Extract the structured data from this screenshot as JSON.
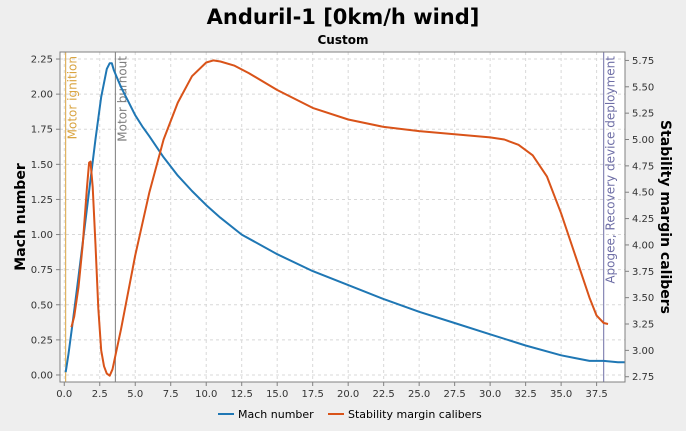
{
  "chart_data": {
    "type": "line",
    "title": "Anduril-1 [0km/h wind]",
    "subtitle": "Custom",
    "xlabel": "",
    "ylabel": "Mach number",
    "ylabel_right": "Stability margin calibers",
    "xlim": [
      -0.3,
      39.5
    ],
    "ylim": [
      -0.05,
      2.3
    ],
    "ylim_right": [
      2.7,
      5.83
    ],
    "xticks": [
      "0.0",
      "2.5",
      "5.0",
      "7.5",
      "10.0",
      "12.5",
      "15.0",
      "17.5",
      "20.0",
      "22.5",
      "25.0",
      "27.5",
      "30.0",
      "32.5",
      "35.0",
      "37.5"
    ],
    "yticks": [
      "0.00",
      "0.25",
      "0.50",
      "0.75",
      "1.00",
      "1.25",
      "1.50",
      "1.75",
      "2.00",
      "2.25"
    ],
    "yticks_right": [
      "2.75",
      "3.00",
      "3.25",
      "3.50",
      "3.75",
      "4.00",
      "4.25",
      "4.50",
      "4.75",
      "5.00",
      "5.25",
      "5.50",
      "5.75"
    ],
    "grid": true,
    "legend_position": "bottom",
    "series": [
      {
        "name": "Mach number",
        "axis": "left",
        "color": "#1f77b4",
        "x": [
          0.1,
          0.3,
          0.6,
          1.0,
          1.4,
          1.8,
          2.2,
          2.6,
          3.0,
          3.2,
          3.35,
          3.5,
          3.7,
          4.0,
          4.5,
          5.0,
          5.5,
          6.0,
          7.0,
          8.0,
          9.0,
          10.0,
          11.0,
          12.5,
          15.0,
          17.5,
          20.0,
          22.5,
          25.0,
          27.5,
          30.0,
          32.5,
          35.0,
          36.0,
          37.0,
          38.0,
          39.0,
          39.5
        ],
        "y": [
          0.02,
          0.15,
          0.38,
          0.7,
          1.02,
          1.35,
          1.68,
          1.98,
          2.18,
          2.22,
          2.22,
          2.17,
          2.12,
          2.05,
          1.95,
          1.85,
          1.77,
          1.7,
          1.55,
          1.42,
          1.31,
          1.21,
          1.12,
          1.0,
          0.86,
          0.74,
          0.64,
          0.54,
          0.45,
          0.37,
          0.29,
          0.21,
          0.14,
          0.12,
          0.1,
          0.1,
          0.09,
          0.09
        ]
      },
      {
        "name": "Stability margin calibers",
        "axis": "right",
        "color": "#d95319",
        "x": [
          0.5,
          0.7,
          1.0,
          1.3,
          1.6,
          1.75,
          1.85,
          2.0,
          2.2,
          2.4,
          2.6,
          2.8,
          3.0,
          3.2,
          3.4,
          3.6,
          4.0,
          4.5,
          5.0,
          6.0,
          7.0,
          8.0,
          9.0,
          10.0,
          10.5,
          11.0,
          12.0,
          13.0,
          15.0,
          17.5,
          20.0,
          22.5,
          25.0,
          27.5,
          30.0,
          31.0,
          32.0,
          33.0,
          34.0,
          35.0,
          36.0,
          37.0,
          37.5,
          38.0,
          38.3
        ],
        "y": [
          3.22,
          3.32,
          3.6,
          4.0,
          4.55,
          4.78,
          4.79,
          4.55,
          4.0,
          3.4,
          3.0,
          2.85,
          2.78,
          2.76,
          2.82,
          2.95,
          3.2,
          3.55,
          3.9,
          4.5,
          5.0,
          5.35,
          5.6,
          5.73,
          5.75,
          5.74,
          5.7,
          5.63,
          5.47,
          5.3,
          5.19,
          5.12,
          5.08,
          5.05,
          5.02,
          5.0,
          4.95,
          4.85,
          4.65,
          4.3,
          3.9,
          3.5,
          3.33,
          3.26,
          3.25
        ]
      }
    ],
    "annotations": [
      {
        "label": "Motor ignition",
        "x": 0.1,
        "color": "#d9a441"
      },
      {
        "label": "Motor burnout",
        "x": 3.6,
        "color": "#7d7d7d"
      },
      {
        "label": "Apogee, Recovery device deployment",
        "x": 38.0,
        "color": "#6e6ea6"
      }
    ]
  }
}
